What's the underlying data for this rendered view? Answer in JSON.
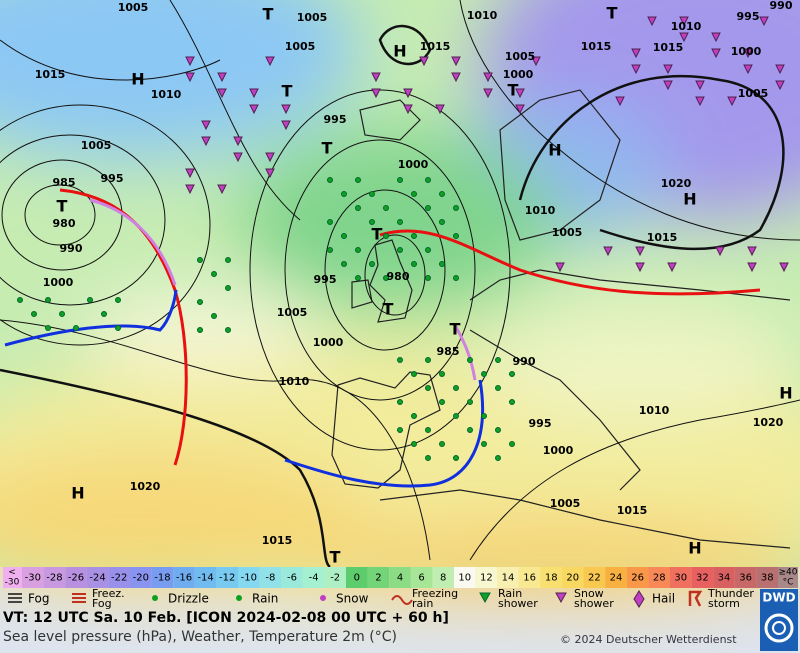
{
  "map": {
    "labels": [
      "1005",
      "T",
      "1005",
      "1010",
      "T",
      "1010",
      "995",
      "990",
      "1005",
      "H",
      "1015",
      "1015",
      "1015",
      "1000",
      "1015",
      "H",
      "1010",
      "T",
      "1005",
      "1000",
      "T",
      "1005",
      "995",
      "1005",
      "T",
      "H",
      "1000",
      "985",
      "995",
      "T",
      "980",
      "990",
      "1020",
      "H",
      "1010",
      "1005",
      "1015",
      "T",
      "980",
      "995",
      "1000",
      "1005",
      "T",
      "T",
      "985",
      "990",
      "1000",
      "1010",
      "H",
      "1010",
      "1020",
      "995",
      "1000",
      "H",
      "1020",
      "1005",
      "1015",
      "1015",
      "H",
      "T"
    ]
  },
  "color_scale": {
    "under": [
      "<",
      "-30"
    ],
    "values": [
      -30,
      -28,
      -26,
      -24,
      -22,
      -20,
      -18,
      -16,
      -14,
      -12,
      -10,
      -8,
      -6,
      -4,
      -2,
      0,
      2,
      4,
      6,
      8,
      10,
      12,
      14,
      16,
      18,
      20,
      22,
      24,
      26,
      28,
      30,
      32,
      34,
      36,
      38
    ],
    "colors": [
      "#d8a0e0",
      "#c898e0",
      "#b890e0",
      "#a890e4",
      "#9890ea",
      "#8894f0",
      "#789cf0",
      "#70acf0",
      "#70bcf0",
      "#78caf0",
      "#84d8f0",
      "#90e2e8",
      "#9aeadc",
      "#a4f0d0",
      "#aef0c4",
      "#5ccc6c",
      "#74d478",
      "#8cdc86",
      "#a6e696",
      "#c0eeb0",
      "#fafaf0",
      "#f8f8d0",
      "#f8f0b0",
      "#f8e890",
      "#f8e070",
      "#f8d860",
      "#f8c850",
      "#f8b040",
      "#f89848",
      "#f88858",
      "#f07060",
      "#e86060",
      "#d86060",
      "#c86868",
      "#b87070"
    ],
    "under_color": "#f0b0f0",
    "over_color": "#a88888",
    "over": [
      "≥40",
      "°C"
    ]
  },
  "legend": [
    [
      "Fog"
    ],
    [
      "Freez.",
      "Fog"
    ],
    [
      "Drizzle"
    ],
    [
      "Rain"
    ],
    [
      "Snow"
    ],
    [
      "Freezing",
      "rain"
    ],
    [
      "Rain",
      "shower"
    ],
    [
      "Snow",
      "shower"
    ],
    [
      "Hail"
    ],
    [
      "Thunder",
      "storm"
    ]
  ],
  "footer": {
    "valid_time": "VT: 12 UTC Sa.  10 Feb. [ICON 2024-02-08  00 UTC + 60 h]",
    "description": "Sea level pressure (hPa), Weather, Temperature 2m (°C)",
    "copyright": "© 2024 Deutscher Wetterdienst",
    "logo": "DWD"
  }
}
